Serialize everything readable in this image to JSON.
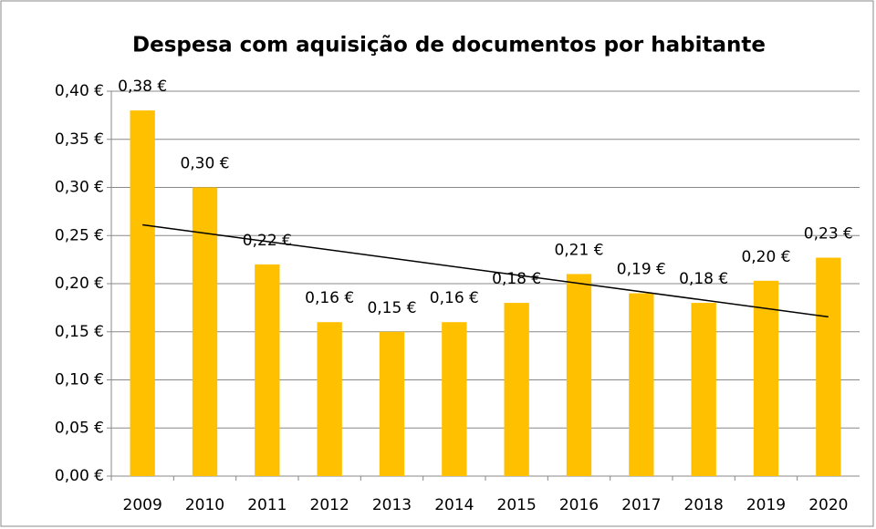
{
  "chart_data": {
    "type": "bar",
    "title": "Despesa com aquisição de documentos por habitante",
    "categories": [
      "2009",
      "2010",
      "2011",
      "2012",
      "2013",
      "2014",
      "2015",
      "2016",
      "2017",
      "2018",
      "2019",
      "2020"
    ],
    "values": [
      0.38,
      0.3,
      0.22,
      0.16,
      0.15,
      0.16,
      0.18,
      0.21,
      0.19,
      0.18,
      0.203,
      0.227
    ],
    "value_labels": [
      "0,38 €",
      "0,30 €",
      "0,22 €",
      "0,16 €",
      "0,15 €",
      "0,16 €",
      "0,18 €",
      "0,21 €",
      "0,19 €",
      "0,18 €",
      "0,20 €",
      "0,23 €"
    ],
    "color": "#ffc000",
    "ylim": [
      0,
      0.4
    ],
    "yticks": [
      {
        "value": 0,
        "label": "0,00 €"
      },
      {
        "value": 0.05,
        "label": "0,05 €"
      },
      {
        "value": 0.1,
        "label": "0,10 €"
      },
      {
        "value": 0.15,
        "label": "0,15 €"
      },
      {
        "value": 0.2,
        "label": "0,20 €"
      },
      {
        "value": 0.25,
        "label": "0,25 €"
      },
      {
        "value": 0.3,
        "label": "0,30 €"
      },
      {
        "value": 0.35,
        "label": "0,35 €"
      },
      {
        "value": 0.4,
        "label": "0,40 €"
      }
    ],
    "grid": true,
    "trendline": true
  }
}
